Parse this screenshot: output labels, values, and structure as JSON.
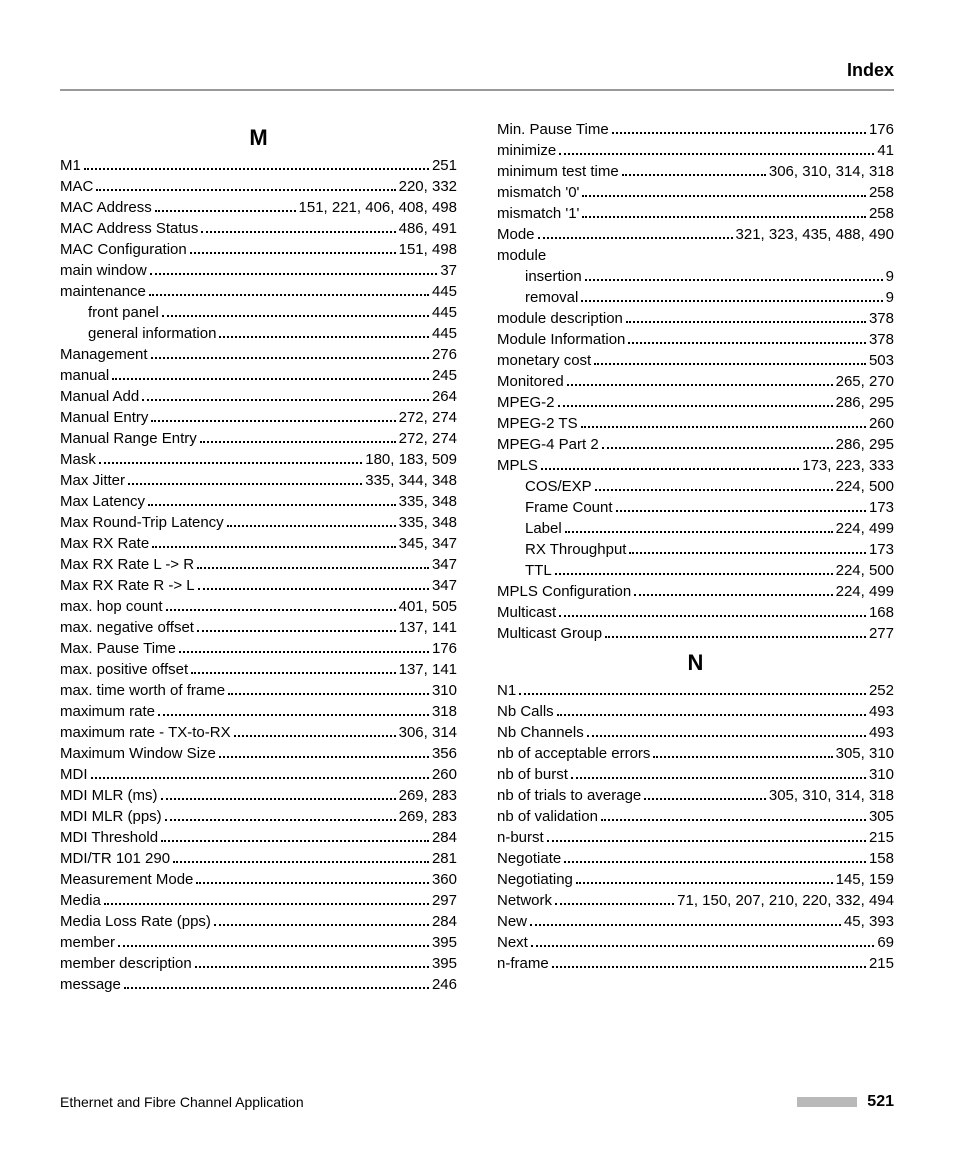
{
  "header": {
    "title": "Index"
  },
  "footer": {
    "title": "Ethernet and Fibre Channel Application",
    "page": "521"
  },
  "left": {
    "sections": [
      {
        "letter": "M",
        "entries": [
          {
            "term": "M1",
            "pages": "251",
            "indent": 0
          },
          {
            "term": "MAC",
            "pages": "220, 332",
            "indent": 0
          },
          {
            "term": "MAC Address",
            "pages": "151, 221, 406, 408, 498",
            "indent": 0
          },
          {
            "term": "MAC Address Status",
            "pages": "486, 491",
            "indent": 0
          },
          {
            "term": "MAC Configuration",
            "pages": "151, 498",
            "indent": 0
          },
          {
            "term": "main window",
            "pages": "37",
            "indent": 0
          },
          {
            "term": "maintenance",
            "pages": "445",
            "indent": 0
          },
          {
            "term": "front panel",
            "pages": "445",
            "indent": 1
          },
          {
            "term": "general information",
            "pages": "445",
            "indent": 1
          },
          {
            "term": "Management",
            "pages": "276",
            "indent": 0
          },
          {
            "term": "manual",
            "pages": "245",
            "indent": 0
          },
          {
            "term": "Manual Add",
            "pages": "264",
            "indent": 0
          },
          {
            "term": "Manual Entry",
            "pages": "272, 274",
            "indent": 0
          },
          {
            "term": "Manual Range Entry",
            "pages": "272, 274",
            "indent": 0
          },
          {
            "term": "Mask",
            "pages": "180, 183, 509",
            "indent": 0
          },
          {
            "term": "Max Jitter",
            "pages": "335, 344, 348",
            "indent": 0
          },
          {
            "term": "Max Latency",
            "pages": "335, 348",
            "indent": 0
          },
          {
            "term": "Max Round-Trip Latency",
            "pages": "335, 348",
            "indent": 0
          },
          {
            "term": "Max RX Rate",
            "pages": "345, 347",
            "indent": 0
          },
          {
            "term": "Max RX Rate L -> R",
            "pages": "347",
            "indent": 0
          },
          {
            "term": "Max RX Rate R -> L",
            "pages": "347",
            "indent": 0
          },
          {
            "term": "max. hop count",
            "pages": "401, 505",
            "indent": 0
          },
          {
            "term": "max. negative offset",
            "pages": "137, 141",
            "indent": 0
          },
          {
            "term": "Max. Pause Time",
            "pages": "176",
            "indent": 0
          },
          {
            "term": "max. positive offset",
            "pages": "137, 141",
            "indent": 0
          },
          {
            "term": "max. time worth of frame",
            "pages": "310",
            "indent": 0
          },
          {
            "term": "maximum rate",
            "pages": "318",
            "indent": 0
          },
          {
            "term": "maximum rate - TX-to-RX",
            "pages": "306, 314",
            "indent": 0
          },
          {
            "term": "Maximum Window Size",
            "pages": "356",
            "indent": 0
          },
          {
            "term": "MDI",
            "pages": "260",
            "indent": 0
          },
          {
            "term": "MDI MLR (ms)",
            "pages": "269, 283",
            "indent": 0
          },
          {
            "term": "MDI MLR (pps)",
            "pages": "269, 283",
            "indent": 0
          },
          {
            "term": "MDI Threshold",
            "pages": "284",
            "indent": 0
          },
          {
            "term": "MDI/TR 101 290",
            "pages": "281",
            "indent": 0
          },
          {
            "term": "Measurement Mode",
            "pages": "360",
            "indent": 0
          },
          {
            "term": "Media",
            "pages": "297",
            "indent": 0
          },
          {
            "term": "Media Loss Rate (pps)",
            "pages": "284",
            "indent": 0
          },
          {
            "term": "member",
            "pages": "395",
            "indent": 0
          },
          {
            "term": "member description",
            "pages": "395",
            "indent": 0
          },
          {
            "term": "message",
            "pages": "246",
            "indent": 0
          }
        ]
      }
    ]
  },
  "right": {
    "sections": [
      {
        "letter": null,
        "entries": [
          {
            "term": "Min. Pause Time",
            "pages": "176",
            "indent": 0
          },
          {
            "term": "minimize",
            "pages": "41",
            "indent": 0
          },
          {
            "term": "minimum test time",
            "pages": "306, 310, 314, 318",
            "indent": 0
          },
          {
            "term": "mismatch '0'",
            "pages": "258",
            "indent": 0
          },
          {
            "term": "mismatch '1'",
            "pages": "258",
            "indent": 0
          },
          {
            "term": "Mode",
            "pages": "321, 323, 435, 488, 490",
            "indent": 0
          },
          {
            "term": "module",
            "pages": null,
            "indent": 0,
            "plain": true
          },
          {
            "term": "insertion",
            "pages": "9",
            "indent": 1
          },
          {
            "term": "removal",
            "pages": "9",
            "indent": 1
          },
          {
            "term": "module description",
            "pages": "378",
            "indent": 0
          },
          {
            "term": "Module Information",
            "pages": "378",
            "indent": 0
          },
          {
            "term": "monetary cost",
            "pages": "503",
            "indent": 0
          },
          {
            "term": "Monitored",
            "pages": "265, 270",
            "indent": 0
          },
          {
            "term": "MPEG-2",
            "pages": "286, 295",
            "indent": 0
          },
          {
            "term": "MPEG-2 TS",
            "pages": "260",
            "indent": 0
          },
          {
            "term": "MPEG-4 Part 2",
            "pages": "286, 295",
            "indent": 0
          },
          {
            "term": "MPLS",
            "pages": "173, 223, 333",
            "indent": 0
          },
          {
            "term": "COS/EXP",
            "pages": "224, 500",
            "indent": 1
          },
          {
            "term": "Frame Count",
            "pages": "173",
            "indent": 1
          },
          {
            "term": "Label",
            "pages": "224, 499",
            "indent": 1
          },
          {
            "term": "RX Throughput",
            "pages": "173",
            "indent": 1
          },
          {
            "term": "TTL",
            "pages": "224, 500",
            "indent": 1
          },
          {
            "term": "MPLS Configuration",
            "pages": "224, 499",
            "indent": 0
          },
          {
            "term": "Multicast",
            "pages": "168",
            "indent": 0
          },
          {
            "term": "Multicast Group",
            "pages": "277",
            "indent": 0
          }
        ]
      },
      {
        "letter": "N",
        "entries": [
          {
            "term": "N1",
            "pages": "252",
            "indent": 0
          },
          {
            "term": "Nb Calls",
            "pages": "493",
            "indent": 0
          },
          {
            "term": "Nb Channels",
            "pages": "493",
            "indent": 0
          },
          {
            "term": "nb of acceptable errors",
            "pages": "305, 310",
            "indent": 0
          },
          {
            "term": "nb of burst",
            "pages": "310",
            "indent": 0
          },
          {
            "term": "nb of trials to average",
            "pages": "305, 310, 314, 318",
            "indent": 0
          },
          {
            "term": "nb of validation",
            "pages": "305",
            "indent": 0
          },
          {
            "term": "n-burst",
            "pages": "215",
            "indent": 0
          },
          {
            "term": "Negotiate",
            "pages": "158",
            "indent": 0
          },
          {
            "term": "Negotiating",
            "pages": "145, 159",
            "indent": 0
          },
          {
            "term": "Network",
            "pages": "71, 150, 207, 210, 220, 332, 494",
            "indent": 0
          },
          {
            "term": "New",
            "pages": "45, 393",
            "indent": 0
          },
          {
            "term": "Next",
            "pages": "69",
            "indent": 0
          },
          {
            "term": "n-frame",
            "pages": "215",
            "indent": 0
          }
        ]
      }
    ]
  }
}
